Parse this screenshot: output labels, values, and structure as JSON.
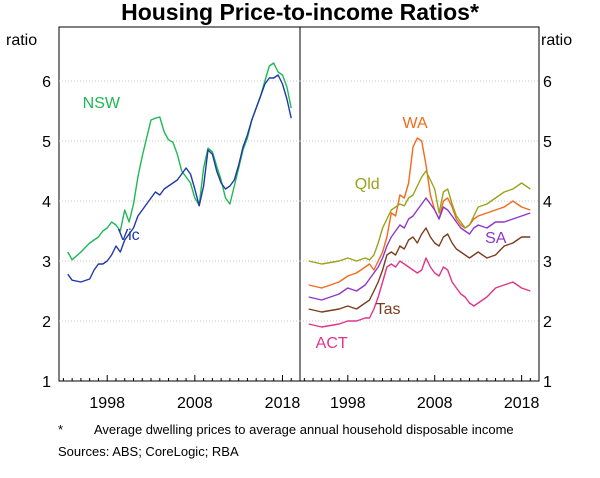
{
  "chart_data": {
    "type": "line",
    "title": "Housing Price-to-income Ratios*",
    "y_unit_left": "ratio",
    "y_unit_right": "ratio",
    "ylim": [
      1,
      6.9
    ],
    "yticks": [
      1,
      2,
      3,
      4,
      5,
      6
    ],
    "xlim": [
      1992.5,
      2020
    ],
    "xticks": [
      1998,
      2008,
      2018
    ],
    "panels": [
      {
        "name": "left",
        "series": [
          {
            "name": "NSW",
            "color": "#1db954",
            "x": [
              1993.5,
              1994,
              1995,
              1996,
              1997,
              1997.5,
              1998,
              1998.5,
              1999,
              1999.5,
              2000,
              2000.5,
              2001,
              2001.5,
              2002,
              2002.5,
              2003,
              2003.5,
              2004,
              2004.5,
              2005,
              2005.5,
              2006,
              2006.5,
              2007,
              2007.5,
              2008,
              2008.5,
              2009,
              2009.5,
              2010,
              2010.5,
              2011,
              2011.5,
              2012,
              2012.5,
              2013,
              2013.5,
              2014,
              2014.5,
              2015,
              2015.5,
              2016,
              2016.5,
              2017,
              2017.5,
              2018,
              2018.5,
              2019
            ],
            "y": [
              3.15,
              3.02,
              3.15,
              3.3,
              3.4,
              3.5,
              3.55,
              3.65,
              3.6,
              3.5,
              3.85,
              3.65,
              3.95,
              4.4,
              4.75,
              5.05,
              5.35,
              5.38,
              5.4,
              5.15,
              5.02,
              4.98,
              4.78,
              4.5,
              4.4,
              4.3,
              4.05,
              3.93,
              4.55,
              4.88,
              4.82,
              4.58,
              4.35,
              4.05,
              3.95,
              4.25,
              4.55,
              4.85,
              5.05,
              5.35,
              5.55,
              5.75,
              6.0,
              6.25,
              6.3,
              6.15,
              6.1,
              5.9,
              5.55
            ]
          },
          {
            "name": "Vic",
            "color": "#1f3aa6",
            "x": [
              1993.5,
              1994,
              1995,
              1996,
              1996.5,
              1997,
              1997.5,
              1998,
              1998.5,
              1999,
              1999.5,
              2000,
              2000.5,
              2001,
              2001.5,
              2002,
              2002.5,
              2003,
              2003.5,
              2004,
              2004.5,
              2005,
              2005.5,
              2006,
              2006.5,
              2007,
              2007.5,
              2008,
              2008.5,
              2009,
              2009.5,
              2010,
              2010.5,
              2011,
              2011.5,
              2012,
              2012.5,
              2013,
              2013.5,
              2014,
              2014.5,
              2015,
              2015.5,
              2016,
              2016.5,
              2017,
              2017.5,
              2018,
              2018.5,
              2019
            ],
            "y": [
              2.78,
              2.68,
              2.65,
              2.7,
              2.85,
              2.95,
              2.95,
              3.0,
              3.1,
              3.25,
              3.15,
              3.35,
              3.45,
              3.55,
              3.75,
              3.85,
              3.95,
              4.05,
              4.15,
              4.1,
              4.2,
              4.25,
              4.3,
              4.35,
              4.45,
              4.55,
              4.45,
              4.2,
              3.92,
              4.25,
              4.85,
              4.78,
              4.5,
              4.3,
              4.2,
              4.25,
              4.35,
              4.6,
              4.9,
              5.1,
              5.35,
              5.55,
              5.75,
              5.95,
              6.05,
              6.05,
              6.1,
              5.95,
              5.7,
              5.38
            ]
          }
        ],
        "labels": [
          {
            "series": "NSW",
            "text": "NSW"
          },
          {
            "series": "Vic",
            "text": "Vic"
          }
        ]
      },
      {
        "name": "right",
        "series": [
          {
            "name": "WA",
            "color": "#f26b1d",
            "x": [
              1993.5,
              1995,
              1997,
              1998,
              1999,
              2000,
              2000.5,
              2001,
              2001.5,
              2002,
              2002.5,
              2003,
              2003.5,
              2004,
              2004.5,
              2005,
              2005.5,
              2006,
              2006.5,
              2007,
              2007.5,
              2008,
              2008.5,
              2009,
              2009.5,
              2010,
              2010.5,
              2011,
              2011.5,
              2012,
              2012.5,
              2013,
              2014,
              2015,
              2016,
              2017,
              2018,
              2019
            ],
            "y": [
              2.6,
              2.55,
              2.65,
              2.75,
              2.8,
              2.9,
              2.95,
              2.85,
              3.0,
              3.15,
              3.4,
              3.8,
              3.75,
              4.1,
              4.05,
              4.3,
              4.9,
              5.05,
              5.0,
              4.6,
              4.1,
              3.85,
              3.7,
              4.0,
              4.05,
              3.9,
              3.7,
              3.6,
              3.55,
              3.6,
              3.7,
              3.75,
              3.8,
              3.85,
              3.9,
              4.0,
              3.9,
              3.85
            ]
          },
          {
            "name": "Qld",
            "color": "#9aa31a",
            "x": [
              1993.5,
              1995,
              1997,
              1998,
              1999,
              2000,
              2000.5,
              2001,
              2001.5,
              2002,
              2002.5,
              2003,
              2003.5,
              2004,
              2004.5,
              2005,
              2005.5,
              2006,
              2006.5,
              2007,
              2007.5,
              2008,
              2008.5,
              2009,
              2009.5,
              2010,
              2010.5,
              2011,
              2011.5,
              2012,
              2012.5,
              2013,
              2014,
              2015,
              2016,
              2017,
              2018,
              2019
            ],
            "y": [
              3.0,
              2.95,
              3.0,
              3.05,
              3.0,
              3.05,
              3.02,
              3.1,
              3.3,
              3.55,
              3.7,
              3.85,
              3.9,
              3.95,
              3.92,
              4.05,
              4.1,
              4.25,
              4.4,
              4.5,
              4.35,
              4.2,
              3.8,
              4.15,
              4.2,
              3.95,
              3.75,
              3.65,
              3.55,
              3.6,
              3.75,
              3.9,
              3.95,
              4.05,
              4.15,
              4.2,
              4.3,
              4.2
            ]
          },
          {
            "name": "SA",
            "color": "#8e36c9",
            "x": [
              1993.5,
              1995,
              1997,
              1998,
              1999,
              2000,
              2000.5,
              2001,
              2001.5,
              2002,
              2002.5,
              2003,
              2003.5,
              2004,
              2004.5,
              2005,
              2005.5,
              2006,
              2006.5,
              2007,
              2007.5,
              2008,
              2008.5,
              2009,
              2009.5,
              2010,
              2010.5,
              2011,
              2011.5,
              2012,
              2012.5,
              2013,
              2014,
              2015,
              2016,
              2017,
              2018,
              2019
            ],
            "y": [
              2.4,
              2.35,
              2.45,
              2.55,
              2.5,
              2.6,
              2.7,
              2.8,
              2.9,
              3.05,
              3.25,
              3.4,
              3.5,
              3.6,
              3.55,
              3.7,
              3.75,
              3.85,
              3.95,
              4.05,
              3.95,
              3.85,
              3.7,
              3.9,
              3.85,
              3.75,
              3.65,
              3.55,
              3.5,
              3.45,
              3.55,
              3.6,
              3.55,
              3.65,
              3.65,
              3.7,
              3.75,
              3.8
            ]
          },
          {
            "name": "Tas",
            "color": "#7b3c1f",
            "x": [
              1993.5,
              1995,
              1997,
              1998,
              1999,
              2000,
              2000.5,
              2001,
              2001.5,
              2002,
              2002.5,
              2003,
              2003.5,
              2004,
              2004.5,
              2005,
              2005.5,
              2006,
              2006.5,
              2007,
              2007.5,
              2008,
              2008.5,
              2009,
              2009.5,
              2010,
              2010.5,
              2011,
              2011.5,
              2012,
              2012.5,
              2013,
              2014,
              2015,
              2016,
              2017,
              2018,
              2019
            ],
            "y": [
              2.2,
              2.15,
              2.2,
              2.25,
              2.2,
              2.3,
              2.35,
              2.5,
              2.65,
              2.85,
              3.1,
              3.15,
              3.1,
              3.25,
              3.2,
              3.35,
              3.4,
              3.3,
              3.45,
              3.55,
              3.4,
              3.3,
              3.25,
              3.4,
              3.45,
              3.3,
              3.2,
              3.15,
              3.1,
              3.05,
              3.1,
              3.15,
              3.05,
              3.1,
              3.25,
              3.3,
              3.4,
              3.4
            ]
          },
          {
            "name": "ACT",
            "color": "#e0348a",
            "x": [
              1993.5,
              1995,
              1997,
              1998,
              1999,
              2000,
              2000.5,
              2001,
              2001.5,
              2002,
              2002.5,
              2003,
              2003.5,
              2004,
              2004.5,
              2005,
              2005.5,
              2006,
              2006.5,
              2007,
              2007.5,
              2008,
              2008.5,
              2009,
              2009.5,
              2010,
              2010.5,
              2011,
              2011.5,
              2012,
              2012.5,
              2013,
              2014,
              2015,
              2016,
              2017,
              2018,
              2019
            ],
            "y": [
              1.95,
              1.9,
              1.95,
              2.0,
              2.0,
              2.05,
              2.05,
              2.2,
              2.4,
              2.65,
              2.9,
              2.95,
              2.9,
              3.0,
              2.95,
              2.9,
              2.85,
              2.8,
              2.85,
              3.05,
              2.9,
              2.8,
              2.75,
              2.9,
              2.85,
              2.65,
              2.55,
              2.45,
              2.4,
              2.3,
              2.25,
              2.3,
              2.4,
              2.55,
              2.6,
              2.65,
              2.55,
              2.5
            ]
          }
        ],
        "labels": [
          {
            "series": "WA",
            "text": "WA"
          },
          {
            "series": "Qld",
            "text": "Qld"
          },
          {
            "series": "SA",
            "text": "SA"
          },
          {
            "series": "Tas",
            "text": "Tas"
          },
          {
            "series": "ACT",
            "text": "ACT"
          }
        ]
      }
    ]
  },
  "notes": {
    "footnote_marker": "*",
    "footnote_text": "Average dwelling prices to average annual household disposable income",
    "sources": "Sources:   ABS; CoreLogic; RBA"
  }
}
